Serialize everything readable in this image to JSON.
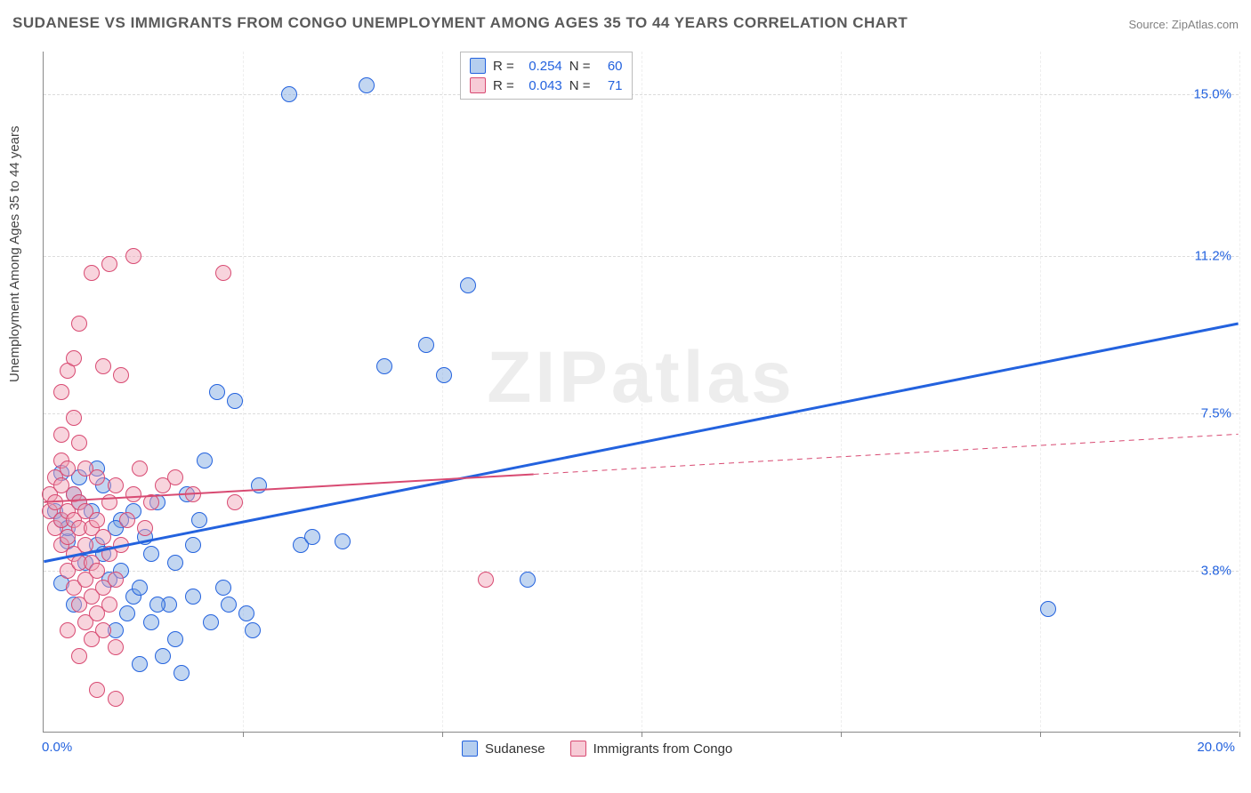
{
  "title": "SUDANESE VS IMMIGRANTS FROM CONGO UNEMPLOYMENT AMONG AGES 35 TO 44 YEARS CORRELATION CHART",
  "source": "Source: ZipAtlas.com",
  "watermark": "ZIPatlas",
  "y_axis_label": "Unemployment Among Ages 35 to 44 years",
  "chart": {
    "type": "scatter",
    "xlim": [
      0,
      20
    ],
    "ylim": [
      0,
      16
    ],
    "background_color": "#ffffff",
    "grid_color": "#dcdcdc",
    "axis_color": "#888888",
    "marker_size": 18,
    "x_ticks": [
      0,
      3.33,
      6.67,
      10,
      13.33,
      16.67,
      20
    ],
    "x_tick_labels": [
      "0.0%",
      "",
      "",
      "",
      "",
      "",
      "20.0%"
    ],
    "y_grid": [
      3.8,
      7.5,
      11.2,
      15.0
    ],
    "y_tick_labels": [
      "3.8%",
      "7.5%",
      "11.2%",
      "15.0%"
    ]
  },
  "series": [
    {
      "name": "Sudanese",
      "color_key": "blue",
      "fill": "rgba(120,165,225,0.45)",
      "stroke": "#2362de",
      "line_width": 3,
      "r_value": "0.254",
      "n_value": "60",
      "trend": {
        "x1": 0,
        "y1": 4.0,
        "x2": 20,
        "y2": 9.6,
        "dashed_from": null
      },
      "points": [
        [
          0.2,
          5.2
        ],
        [
          0.3,
          5.0
        ],
        [
          0.4,
          4.5
        ],
        [
          0.5,
          5.6
        ],
        [
          0.6,
          6.0
        ],
        [
          0.3,
          3.5
        ],
        [
          0.5,
          3.0
        ],
        [
          0.8,
          5.2
        ],
        [
          0.9,
          4.4
        ],
        [
          1.0,
          5.8
        ],
        [
          1.1,
          3.6
        ],
        [
          1.2,
          2.4
        ],
        [
          1.3,
          5.0
        ],
        [
          1.4,
          2.8
        ],
        [
          1.5,
          3.2
        ],
        [
          1.6,
          1.6
        ],
        [
          1.7,
          4.6
        ],
        [
          1.8,
          2.6
        ],
        [
          1.9,
          5.4
        ],
        [
          2.0,
          1.8
        ],
        [
          2.1,
          3.0
        ],
        [
          2.2,
          2.2
        ],
        [
          2.3,
          1.4
        ],
        [
          2.4,
          5.6
        ],
        [
          2.5,
          3.2
        ],
        [
          2.6,
          5.0
        ],
        [
          2.7,
          6.4
        ],
        [
          2.8,
          2.6
        ],
        [
          2.9,
          8.0
        ],
        [
          3.0,
          3.4
        ],
        [
          3.1,
          3.0
        ],
        [
          3.2,
          7.8
        ],
        [
          3.4,
          2.8
        ],
        [
          3.5,
          2.4
        ],
        [
          3.6,
          5.8
        ],
        [
          4.1,
          15.0
        ],
        [
          4.3,
          4.4
        ],
        [
          4.5,
          4.6
        ],
        [
          5.0,
          4.5
        ],
        [
          5.4,
          15.2
        ],
        [
          5.7,
          8.6
        ],
        [
          6.4,
          9.1
        ],
        [
          6.7,
          8.4
        ],
        [
          7.1,
          10.5
        ],
        [
          8.1,
          3.6
        ],
        [
          16.8,
          2.9
        ],
        [
          0.4,
          4.8
        ],
        [
          0.7,
          4.0
        ],
        [
          1.0,
          4.2
        ],
        [
          1.3,
          3.8
        ],
        [
          1.6,
          3.4
        ],
        [
          1.9,
          3.0
        ],
        [
          2.2,
          4.0
        ],
        [
          2.5,
          4.4
        ],
        [
          0.3,
          6.1
        ],
        [
          0.6,
          5.4
        ],
        [
          0.9,
          6.2
        ],
        [
          1.2,
          4.8
        ],
        [
          1.5,
          5.2
        ],
        [
          1.8,
          4.2
        ]
      ]
    },
    {
      "name": "Immigrants from Congo",
      "color_key": "pink",
      "fill": "rgba(240,160,180,0.45)",
      "stroke": "#d84a72",
      "line_width": 2,
      "r_value": "0.043",
      "n_value": "71",
      "trend": {
        "x1": 0,
        "y1": 5.4,
        "x2": 20,
        "y2": 7.0,
        "dashed_from": 8.2
      },
      "points": [
        [
          0.1,
          5.2
        ],
        [
          0.1,
          5.6
        ],
        [
          0.2,
          4.8
        ],
        [
          0.2,
          5.4
        ],
        [
          0.2,
          6.0
        ],
        [
          0.3,
          4.4
        ],
        [
          0.3,
          5.0
        ],
        [
          0.3,
          5.8
        ],
        [
          0.3,
          6.4
        ],
        [
          0.3,
          7.0
        ],
        [
          0.4,
          3.8
        ],
        [
          0.4,
          4.6
        ],
        [
          0.4,
          5.2
        ],
        [
          0.4,
          6.2
        ],
        [
          0.4,
          8.5
        ],
        [
          0.5,
          3.4
        ],
        [
          0.5,
          4.2
        ],
        [
          0.5,
          5.0
        ],
        [
          0.5,
          5.6
        ],
        [
          0.5,
          7.4
        ],
        [
          0.5,
          8.8
        ],
        [
          0.6,
          3.0
        ],
        [
          0.6,
          4.0
        ],
        [
          0.6,
          4.8
        ],
        [
          0.6,
          5.4
        ],
        [
          0.6,
          6.8
        ],
        [
          0.6,
          9.6
        ],
        [
          0.7,
          2.6
        ],
        [
          0.7,
          3.6
        ],
        [
          0.7,
          4.4
        ],
        [
          0.7,
          5.2
        ],
        [
          0.7,
          6.2
        ],
        [
          0.8,
          2.2
        ],
        [
          0.8,
          3.2
        ],
        [
          0.8,
          4.0
        ],
        [
          0.8,
          4.8
        ],
        [
          0.8,
          10.8
        ],
        [
          0.9,
          2.8
        ],
        [
          0.9,
          3.8
        ],
        [
          0.9,
          5.0
        ],
        [
          0.9,
          6.0
        ],
        [
          1.0,
          2.4
        ],
        [
          1.0,
          3.4
        ],
        [
          1.0,
          4.6
        ],
        [
          1.0,
          8.6
        ],
        [
          1.1,
          3.0
        ],
        [
          1.1,
          4.2
        ],
        [
          1.1,
          5.4
        ],
        [
          1.1,
          11.0
        ],
        [
          1.2,
          2.0
        ],
        [
          1.2,
          3.6
        ],
        [
          1.2,
          5.8
        ],
        [
          1.3,
          4.4
        ],
        [
          1.3,
          8.4
        ],
        [
          1.4,
          5.0
        ],
        [
          1.5,
          5.6
        ],
        [
          1.5,
          11.2
        ],
        [
          1.6,
          6.2
        ],
        [
          1.7,
          4.8
        ],
        [
          1.8,
          5.4
        ],
        [
          2.0,
          5.8
        ],
        [
          2.2,
          6.0
        ],
        [
          2.5,
          5.6
        ],
        [
          3.0,
          10.8
        ],
        [
          3.2,
          5.4
        ],
        [
          0.9,
          1.0
        ],
        [
          1.2,
          0.8
        ],
        [
          0.4,
          2.4
        ],
        [
          0.6,
          1.8
        ],
        [
          7.4,
          3.6
        ],
        [
          0.3,
          8.0
        ]
      ]
    }
  ],
  "legend_top_labels": {
    "r": "R =",
    "n": "N ="
  },
  "legend_bottom": [
    {
      "label": "Sudanese",
      "color_key": "blue"
    },
    {
      "label": "Immigrants from Congo",
      "color_key": "pink"
    }
  ]
}
